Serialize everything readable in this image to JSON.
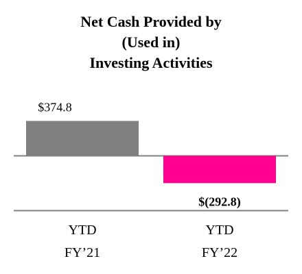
{
  "chart_data": {
    "type": "bar",
    "title_lines": [
      "Net Cash Provided by",
      "(Used in)",
      "Investing Activities"
    ],
    "categories": [
      {
        "line1": "YTD",
        "line2": "FY’21"
      },
      {
        "line1": "YTD",
        "line2": "FY’22"
      }
    ],
    "values": [
      374.8,
      -292.8
    ],
    "value_labels": [
      "$374.8",
      "$(292.8)"
    ],
    "bar_colors": [
      "#808080",
      "#ff0090"
    ],
    "axis_color": "#808080",
    "grid": false,
    "legend": "none"
  }
}
